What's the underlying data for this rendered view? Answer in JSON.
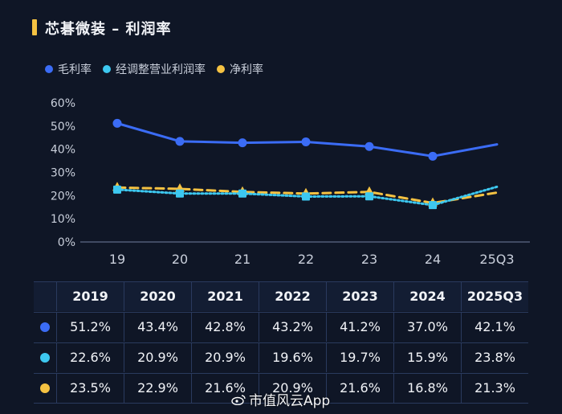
{
  "title": "芯碁微装 – 利润率",
  "colors": {
    "accent": "#f5c242",
    "gross": "#3b6cf5",
    "adjusted": "#3dc8f0",
    "net": "#f5c242"
  },
  "chart_data": {
    "type": "line",
    "title": "芯碁微装 – 利润率",
    "categories": [
      "19",
      "20",
      "21",
      "22",
      "23",
      "24",
      "25Q3"
    ],
    "yticks": [
      "0%",
      "10%",
      "20%",
      "30%",
      "40%",
      "50%",
      "60%"
    ],
    "ylim": [
      0,
      60
    ],
    "grid": false,
    "legend_position": "top-left",
    "series": [
      {
        "name": "毛利率",
        "color": "#3b6cf5",
        "style": "solid",
        "marker": "circle",
        "values": [
          51.2,
          43.4,
          42.8,
          43.2,
          41.2,
          37.0,
          42.1
        ]
      },
      {
        "name": "经调整营业利润率",
        "color": "#3dc8f0",
        "style": "dotted",
        "marker": "square",
        "values": [
          22.6,
          20.9,
          20.9,
          19.6,
          19.7,
          15.9,
          23.8
        ]
      },
      {
        "name": "净利率",
        "color": "#f5c242",
        "style": "dashed",
        "marker": "triangle",
        "values": [
          23.5,
          22.9,
          21.6,
          20.9,
          21.6,
          16.8,
          21.3
        ]
      }
    ]
  },
  "table": {
    "headers": [
      "2019",
      "2020",
      "2021",
      "2022",
      "2023",
      "2024",
      "2025Q3"
    ],
    "rows": [
      {
        "color": "#3b6cf5",
        "cells": [
          "51.2%",
          "43.4%",
          "42.8%",
          "43.2%",
          "41.2%",
          "37.0%",
          "42.1%"
        ]
      },
      {
        "color": "#3dc8f0",
        "cells": [
          "22.6%",
          "20.9%",
          "20.9%",
          "19.6%",
          "19.7%",
          "15.9%",
          "23.8%"
        ]
      },
      {
        "color": "#f5c242",
        "cells": [
          "23.5%",
          "22.9%",
          "21.6%",
          "20.9%",
          "21.6%",
          "16.8%",
          "21.3%"
        ]
      }
    ]
  },
  "watermark": {
    "text": "市值风云App",
    "icon": "weibo-icon"
  }
}
